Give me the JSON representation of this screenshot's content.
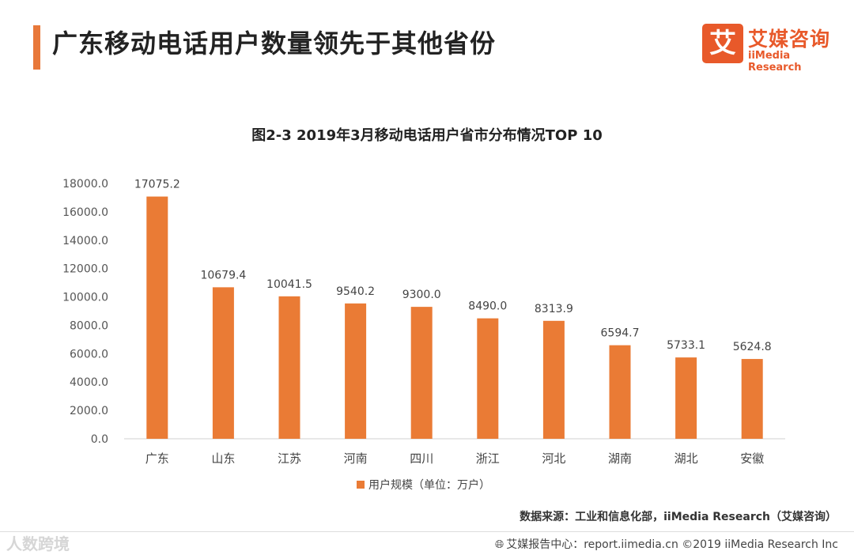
{
  "page": {
    "title": "广东移动电话用户数量领先于其他省份"
  },
  "logo": {
    "mark": "艾",
    "name_cn": "艾媒咨询",
    "name_en": "iiMedia Research"
  },
  "chart_data": {
    "type": "bar",
    "title": "图2-3 2019年3月移动电话用户省市分布情况TOP 10",
    "categories": [
      "广东",
      "山东",
      "江苏",
      "河南",
      "四川",
      "浙江",
      "河北",
      "湖南",
      "湖北",
      "安徽"
    ],
    "values": [
      17075.2,
      10679.4,
      10041.5,
      9540.2,
      9300.0,
      8490.0,
      8313.9,
      6594.7,
      5733.1,
      5624.8
    ],
    "value_labels": [
      "17075.2",
      "10679.4",
      "10041.5",
      "9540.2",
      "9300.0",
      "8490.0",
      "8313.9",
      "6594.7",
      "5733.1",
      "5624.8"
    ],
    "yticks": [
      "0.0",
      "2000.0",
      "4000.0",
      "6000.0",
      "8000.0",
      "10000.0",
      "12000.0",
      "14000.0",
      "16000.0",
      "18000.0"
    ],
    "ylim": [
      0,
      18000
    ],
    "legend": "用户规模（单位：万户）",
    "legend_position": "bottom-center",
    "color": "#ea7b35",
    "grid": false
  },
  "source": "数据来源：工业和信息化部，iiMedia Research（艾媒咨询）",
  "footer": {
    "icon": "globe-icon",
    "text": "艾媒报告中心：report.iimedia.cn  ©2019  iiMedia Research Inc"
  },
  "watermark": "人数跨境"
}
